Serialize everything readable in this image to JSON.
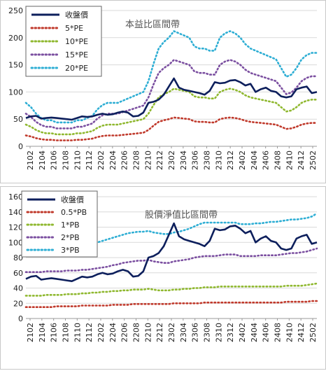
{
  "chart_data": [
    {
      "type": "line",
      "title": "本益比區間帶",
      "x_tick_labels": [
        "2102",
        "2104",
        "2106",
        "2108",
        "2110",
        "2112",
        "2202",
        "2204",
        "2206",
        "2208",
        "2210",
        "2212",
        "2302",
        "2304",
        "2306",
        "2308",
        "2310",
        "2312",
        "2402",
        "2404",
        "2406",
        "2408",
        "2410",
        "2412",
        "2502"
      ],
      "ylim": [
        0,
        250
      ],
      "yticks": [
        0,
        50,
        100,
        150,
        200,
        250
      ],
      "grid": true,
      "legend_position": "top-left",
      "series": [
        {
          "name": "收盤價",
          "color": "#0d1f5c",
          "style": "solid",
          "values": [
            52,
            55,
            56,
            51,
            52,
            53,
            52,
            51,
            50,
            49,
            52,
            55,
            54,
            55,
            58,
            60,
            58,
            59,
            62,
            64,
            62,
            55,
            56,
            62,
            80,
            82,
            86,
            95,
            110,
            125,
            108,
            104,
            102,
            100,
            98,
            95,
            102,
            118,
            116,
            117,
            121,
            122,
            118,
            112,
            115,
            100,
            105,
            108,
            102,
            100,
            92,
            90,
            92,
            105,
            108,
            110,
            98,
            100
          ]
        },
        {
          "name": "5*PE",
          "color": "#c0392b",
          "style": "dotted",
          "values": [
            20,
            18,
            15,
            13,
            12,
            12,
            11,
            11,
            11,
            11,
            12,
            12,
            13,
            14,
            17,
            19,
            20,
            20,
            20,
            21,
            22,
            23,
            24,
            25,
            30,
            38,
            45,
            48,
            50,
            53,
            52,
            51,
            50,
            46,
            45,
            45,
            44,
            44,
            50,
            52,
            53,
            52,
            50,
            47,
            45,
            44,
            43,
            42,
            41,
            40,
            36,
            32,
            33,
            36,
            40,
            42,
            43,
            43
          ]
        },
        {
          "name": "10*PE",
          "color": "#8fb82f",
          "style": "dotted",
          "values": [
            40,
            36,
            30,
            26,
            24,
            24,
            22,
            22,
            22,
            22,
            24,
            24,
            26,
            28,
            34,
            38,
            40,
            40,
            40,
            42,
            44,
            46,
            48,
            50,
            60,
            76,
            90,
            96,
            100,
            106,
            104,
            102,
            100,
            92,
            90,
            90,
            88,
            88,
            100,
            104,
            106,
            104,
            100,
            94,
            90,
            88,
            86,
            84,
            82,
            80,
            72,
            64,
            66,
            72,
            80,
            84,
            86,
            86
          ]
        },
        {
          "name": "15*PE",
          "color": "#7b4fa0",
          "style": "dotted",
          "values": [
            60,
            54,
            45,
            39,
            36,
            36,
            33,
            33,
            33,
            33,
            36,
            36,
            39,
            42,
            51,
            57,
            60,
            60,
            60,
            63,
            66,
            69,
            72,
            75,
            90,
            114,
            135,
            144,
            150,
            159,
            156,
            153,
            150,
            138,
            135,
            135,
            132,
            132,
            150,
            156,
            159,
            156,
            150,
            141,
            135,
            132,
            129,
            126,
            123,
            120,
            108,
            96,
            99,
            108,
            120,
            126,
            129,
            129
          ]
        },
        {
          "name": "20*PE",
          "color": "#2eaed4",
          "style": "dotted",
          "values": [
            80,
            72,
            60,
            52,
            48,
            48,
            44,
            44,
            44,
            44,
            48,
            48,
            52,
            56,
            68,
            76,
            80,
            80,
            80,
            84,
            88,
            92,
            96,
            100,
            120,
            152,
            180,
            192,
            200,
            212,
            208,
            204,
            200,
            184,
            180,
            180,
            176,
            176,
            200,
            208,
            212,
            208,
            200,
            188,
            180,
            176,
            172,
            168,
            164,
            160,
            144,
            128,
            132,
            144,
            160,
            168,
            172,
            172
          ]
        }
      ]
    },
    {
      "type": "line",
      "title": "股價淨值比區間帶",
      "x_tick_labels": [
        "2102",
        "2104",
        "2106",
        "2108",
        "2110",
        "2112",
        "2202",
        "2204",
        "2206",
        "2208",
        "2210",
        "2212",
        "2302",
        "2304",
        "2306",
        "2308",
        "2310",
        "2312",
        "2402",
        "2404",
        "2406",
        "2408",
        "2410",
        "2412",
        "2502"
      ],
      "ylim": [
        0,
        160
      ],
      "yticks": [
        0,
        20,
        40,
        60,
        80,
        100,
        120,
        140,
        160
      ],
      "grid": true,
      "legend_position": "top-left",
      "series": [
        {
          "name": "收盤價",
          "color": "#0d1f5c",
          "style": "solid",
          "values": [
            52,
            55,
            56,
            51,
            52,
            53,
            52,
            51,
            50,
            49,
            52,
            55,
            54,
            55,
            58,
            60,
            58,
            59,
            62,
            64,
            62,
            55,
            56,
            62,
            80,
            82,
            86,
            95,
            110,
            125,
            108,
            104,
            102,
            100,
            98,
            95,
            102,
            118,
            116,
            117,
            121,
            122,
            118,
            112,
            115,
            100,
            105,
            108,
            102,
            100,
            92,
            90,
            92,
            105,
            108,
            110,
            98,
            100
          ]
        },
        {
          "name": "0.5*PB",
          "color": "#c0392b",
          "style": "dotted",
          "values": [
            15,
            15,
            15,
            15,
            15,
            15,
            16,
            16,
            16,
            16,
            16,
            17,
            17,
            17,
            17,
            17,
            17,
            18,
            18,
            18,
            18,
            19,
            19,
            19,
            19,
            19,
            19,
            19,
            19,
            20,
            20,
            20,
            20,
            20,
            20,
            21,
            21,
            21,
            21,
            21,
            21,
            21,
            21,
            21,
            21,
            21,
            21,
            21,
            21,
            21,
            21,
            22,
            22,
            22,
            22,
            22,
            23,
            23
          ]
        },
        {
          "name": "1*PB",
          "color": "#8fb82f",
          "style": "dotted",
          "values": [
            30,
            30,
            30,
            30,
            31,
            31,
            31,
            31,
            32,
            32,
            32,
            33,
            33,
            34,
            34,
            35,
            35,
            36,
            36,
            37,
            37,
            38,
            38,
            38,
            39,
            38,
            37,
            37,
            37,
            38,
            38,
            39,
            39,
            40,
            40,
            41,
            41,
            41,
            42,
            42,
            42,
            42,
            42,
            42,
            42,
            42,
            42,
            42,
            42,
            42,
            42,
            43,
            43,
            43,
            43,
            44,
            45,
            46
          ]
        },
        {
          "name": "2*PB",
          "color": "#7b4fa0",
          "style": "dotted",
          "values": [
            61,
            61,
            61,
            61,
            62,
            62,
            62,
            62,
            63,
            63,
            63,
            64,
            64,
            65,
            66,
            67,
            68,
            70,
            71,
            73,
            74,
            75,
            76,
            76,
            77,
            75,
            74,
            73,
            73,
            75,
            76,
            77,
            78,
            80,
            81,
            82,
            82,
            82,
            83,
            84,
            84,
            84,
            82,
            82,
            82,
            82,
            83,
            83,
            83,
            83,
            84,
            85,
            86,
            86,
            87,
            88,
            90,
            92
          ]
        },
        {
          "name": "3*PB",
          "color": "#2eaed4",
          "style": "dotted",
          "values": [
            92,
            92,
            92,
            92,
            93,
            93,
            93,
            93,
            94,
            94,
            95,
            96,
            97,
            98,
            100,
            102,
            104,
            106,
            108,
            110,
            112,
            113,
            114,
            114,
            115,
            113,
            112,
            111,
            111,
            113,
            114,
            116,
            118,
            121,
            124,
            126,
            126,
            126,
            126,
            126,
            126,
            126,
            124,
            124,
            124,
            125,
            125,
            126,
            127,
            127,
            128,
            129,
            130,
            130,
            131,
            132,
            134,
            138
          ]
        }
      ]
    }
  ]
}
